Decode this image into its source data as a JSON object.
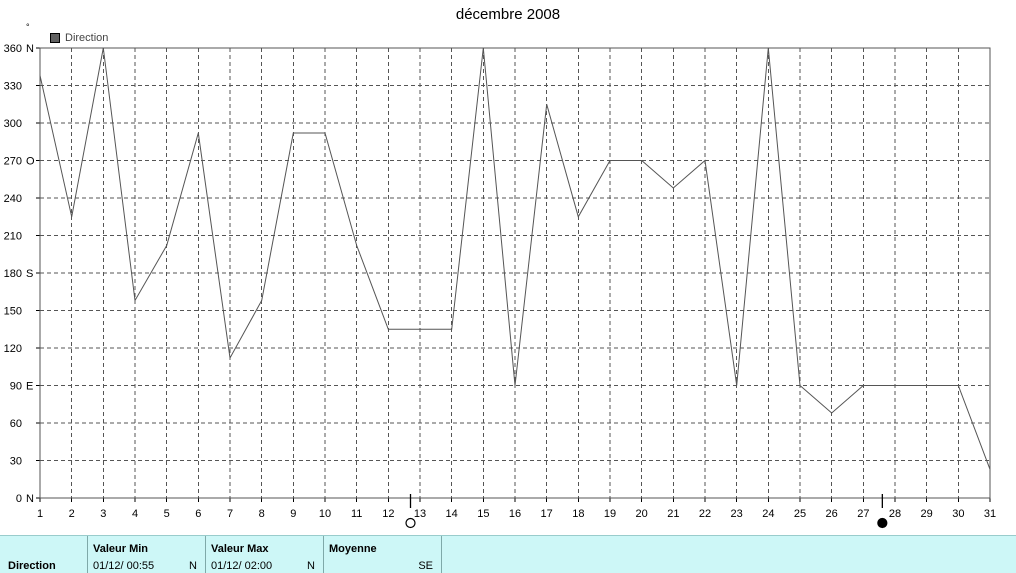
{
  "chart_data": {
    "type": "line",
    "title": "décembre 2008",
    "ylabel": "°",
    "xlabel": "",
    "legend": "top-left",
    "grid": true,
    "series": [
      {
        "name": "Direction",
        "color": "#555555",
        "x": [
          1,
          2,
          3,
          4,
          5,
          6,
          7,
          8,
          9,
          10,
          11,
          12,
          13,
          14,
          15,
          16,
          17,
          18,
          19,
          20,
          21,
          22,
          23,
          24,
          25,
          26,
          27,
          28,
          29,
          30,
          31
        ],
        "values": [
          338,
          225,
          360,
          158,
          202,
          292,
          112,
          158,
          292,
          292,
          202,
          135,
          135,
          135,
          360,
          90,
          315,
          225,
          270,
          270,
          248,
          270,
          90,
          360,
          90,
          68,
          90,
          90,
          90,
          90,
          23
        ]
      }
    ],
    "x_ticks": [
      "1",
      "2",
      "3",
      "4",
      "5",
      "6",
      "7",
      "8",
      "9",
      "10",
      "11",
      "12",
      "13",
      "14",
      "15",
      "16",
      "17",
      "18",
      "19",
      "20",
      "21",
      "22",
      "23",
      "24",
      "25",
      "26",
      "27",
      "28",
      "29",
      "30",
      "31"
    ],
    "xlim": [
      1,
      31
    ],
    "ylim": [
      0,
      360
    ],
    "y_ticks": [
      {
        "value": 0,
        "label": "0",
        "dir": "N"
      },
      {
        "value": 30,
        "label": "30",
        "dir": ""
      },
      {
        "value": 60,
        "label": "60",
        "dir": ""
      },
      {
        "value": 90,
        "label": "90",
        "dir": "E"
      },
      {
        "value": 120,
        "label": "120",
        "dir": ""
      },
      {
        "value": 150,
        "label": "150",
        "dir": ""
      },
      {
        "value": 180,
        "label": "180",
        "dir": "S"
      },
      {
        "value": 210,
        "label": "210",
        "dir": ""
      },
      {
        "value": 240,
        "label": "240",
        "dir": ""
      },
      {
        "value": 270,
        "label": "270",
        "dir": "O"
      },
      {
        "value": 300,
        "label": "300",
        "dir": ""
      },
      {
        "value": 330,
        "label": "330",
        "dir": ""
      },
      {
        "value": 360,
        "label": "360",
        "dir": "N"
      }
    ],
    "moon_phases": [
      {
        "x": 12.7,
        "phase": "full"
      },
      {
        "x": 27.6,
        "phase": "new"
      }
    ]
  },
  "stats": {
    "label": "Direction",
    "min": {
      "header": "Valeur Min",
      "value": "01/12/  00:55",
      "dir": "N"
    },
    "max": {
      "header": "Valeur Max",
      "value": "01/12/  02:00",
      "dir": "N"
    },
    "avg": {
      "header": "Moyenne",
      "value": "",
      "dir": "SE"
    }
  },
  "colors": {
    "stats_bg": "#cdf7f7",
    "line": "#555555",
    "grid": "#555555"
  }
}
